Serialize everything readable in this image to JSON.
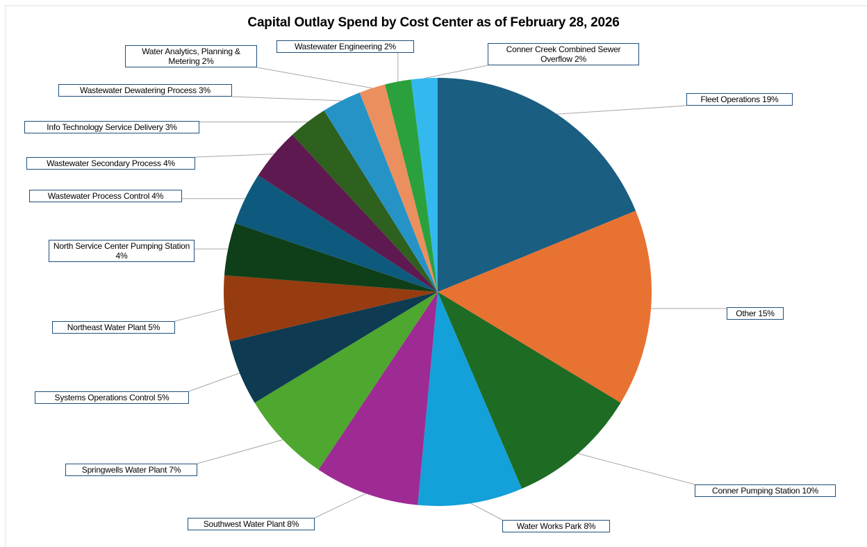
{
  "chart_data": {
    "type": "pie",
    "title": "Capital Outlay Spend by Cost Center as of February 28, 2026",
    "categories": [
      "Fleet Operations",
      "Other",
      "Conner Pumping Station",
      "Water Works Park",
      "Southwest Water Plant",
      "Springwells Water Plant",
      "Systems Operations Control",
      "Northeast Water Plant",
      "North Service Center Pumping Station",
      "Wastewater Process Control",
      "Wastewater Secondary Process",
      "Info Technology Service Delivery",
      "Wastewater Dewatering Process",
      "Water Analytics, Planning & Metering",
      "Wastewater Engineering",
      "Conner Creek Combined Sewer Overflow"
    ],
    "values": [
      19,
      15,
      10,
      8,
      8,
      7,
      5,
      5,
      4,
      4,
      4,
      3,
      3,
      2,
      2,
      2
    ],
    "value_labels": [
      "19%",
      "15%",
      "10%",
      "8%",
      "8%",
      "7%",
      "5%",
      "5%",
      "4%",
      "4%",
      "4%",
      "3%",
      "3%",
      "2%",
      "2%",
      "2%"
    ],
    "colors": [
      "#1a5e82",
      "#e87232",
      "#1e6b24",
      "#14a0d8",
      "#9e2a94",
      "#4ea72e",
      "#0e3a52",
      "#963c10",
      "#0f3f18",
      "#0e5a7e",
      "#5e1a50",
      "#2e601e",
      "#2693c6",
      "#ec8f5e",
      "#2aa13c",
      "#33b9ee"
    ]
  }
}
